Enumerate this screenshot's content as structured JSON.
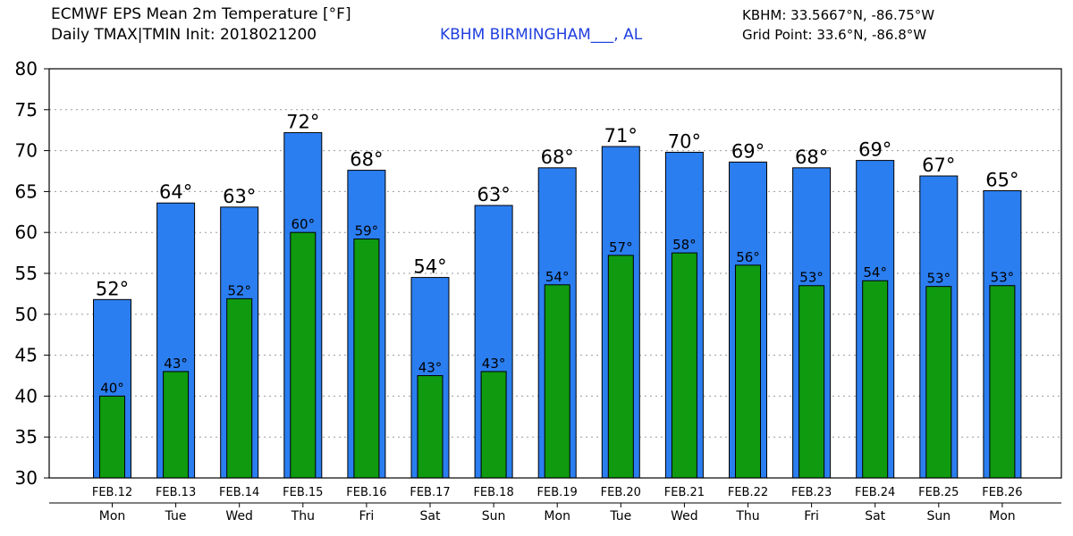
{
  "header": {
    "title_line1": "ECMWF EPS Mean 2m Temperature [°F]",
    "title_line2": "Daily TMAX|TMIN Init: 2018021200",
    "station": "KBHM BIRMINGHAM___, AL",
    "coords": "KBHM: 33.5667°N, -86.75°W",
    "grid_point": "Grid Point: 33.6°N, -86.8°W"
  },
  "colors": {
    "tmax_bar": "#2b7ef0",
    "tmin_bar": "#0f9a0f",
    "station_text": "#1f3fe0"
  },
  "chart_data": {
    "type": "bar",
    "categories": [
      "FEB.12",
      "FEB.13",
      "FEB.14",
      "FEB.15",
      "FEB.16",
      "FEB.17",
      "FEB.18",
      "FEB.19",
      "FEB.20",
      "FEB.21",
      "FEB.22",
      "FEB.23",
      "FEB.24",
      "FEB.25",
      "FEB.26"
    ],
    "weekdays": [
      "Mon",
      "Tue",
      "Wed",
      "Thu",
      "Fri",
      "Sat",
      "Sun",
      "Mon",
      "Tue",
      "Wed",
      "Thu",
      "Fri",
      "Sat",
      "Sun",
      "Mon"
    ],
    "series": [
      {
        "key": "tmax",
        "values": [
          51.8,
          63.6,
          63.1,
          72.2,
          67.6,
          54.5,
          63.3,
          67.9,
          70.5,
          69.8,
          68.6,
          67.9,
          68.8,
          66.9,
          65.1
        ],
        "labels": [
          "52°",
          "64°",
          "63°",
          "72°",
          "68°",
          "54°",
          "63°",
          "68°",
          "71°",
          "70°",
          "69°",
          "68°",
          "69°",
          "67°",
          "65°"
        ]
      },
      {
        "key": "tmin",
        "values": [
          40.0,
          43.0,
          51.9,
          60.0,
          59.2,
          42.5,
          43.0,
          53.6,
          57.2,
          57.5,
          56.0,
          53.5,
          54.1,
          53.4,
          53.5
        ],
        "labels": [
          "40°",
          "43°",
          "52°",
          "60°",
          "59°",
          "43°",
          "43°",
          "54°",
          "57°",
          "58°",
          "56°",
          "53°",
          "54°",
          "53°",
          "53°"
        ]
      }
    ],
    "yticks": [
      "30",
      "35",
      "40",
      "45",
      "50",
      "55",
      "60",
      "65",
      "70",
      "75",
      "80"
    ],
    "ylim": [
      30,
      80
    ],
    "grid": true
  }
}
